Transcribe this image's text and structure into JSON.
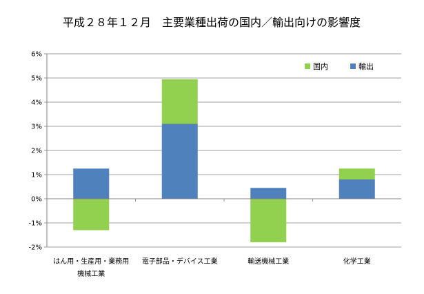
{
  "chart_data": {
    "type": "bar",
    "stacked": true,
    "title": "平成２８年１２月　主要業種出荷の国内／輸出向けの影響度",
    "categories": [
      [
        "はん用・生産用・業務用",
        "機械工業"
      ],
      [
        "電子部品・デバイス工業"
      ],
      [
        "輸送機械工業"
      ],
      [
        "化学工業"
      ]
    ],
    "series": [
      {
        "name": "輸出",
        "color": "#4f81bd",
        "values": [
          1.25,
          3.1,
          0.45,
          0.8
        ]
      },
      {
        "name": "国内",
        "color": "#92d050",
        "values": [
          -1.3,
          1.85,
          -1.8,
          0.45
        ]
      }
    ],
    "y_ticks": [
      "-2%",
      "-1%",
      "0%",
      "1%",
      "2%",
      "3%",
      "4%",
      "5%",
      "6%"
    ],
    "ylim": [
      -2,
      6
    ],
    "grid": true,
    "legend_position": "top-right",
    "legend_order": [
      "国内",
      "輸出"
    ]
  }
}
